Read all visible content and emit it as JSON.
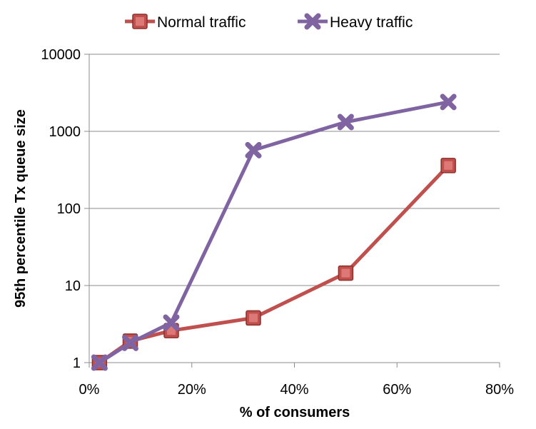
{
  "chart_data": {
    "type": "line",
    "title": "",
    "xlabel": "% of consumers",
    "ylabel": "95th percentile Tx queue size",
    "x_scale": "linear",
    "y_scale": "log",
    "xlim": [
      0,
      80
    ],
    "ylim": [
      1,
      10000
    ],
    "x_ticks": [
      0,
      20,
      40,
      60,
      80
    ],
    "x_tick_labels": [
      "0%",
      "20%",
      "40%",
      "60%",
      "80%"
    ],
    "y_ticks": [
      1,
      10,
      100,
      1000,
      10000
    ],
    "y_tick_labels": [
      "1",
      "10",
      "100",
      "1000",
      "10000"
    ],
    "grid": "horizontal",
    "legend_position": "top",
    "series": [
      {
        "name": "Normal traffic",
        "color": "#c0504d",
        "marker": "square",
        "x": [
          2,
          8,
          16,
          32,
          50,
          70
        ],
        "values": [
          1,
          1.9,
          2.6,
          3.8,
          14.5,
          360
        ]
      },
      {
        "name": "Heavy traffic",
        "color": "#8064a2",
        "marker": "x",
        "x": [
          2,
          8,
          16,
          32,
          50,
          70
        ],
        "values": [
          1,
          1.8,
          3.3,
          570,
          1320,
          2400
        ]
      }
    ]
  }
}
